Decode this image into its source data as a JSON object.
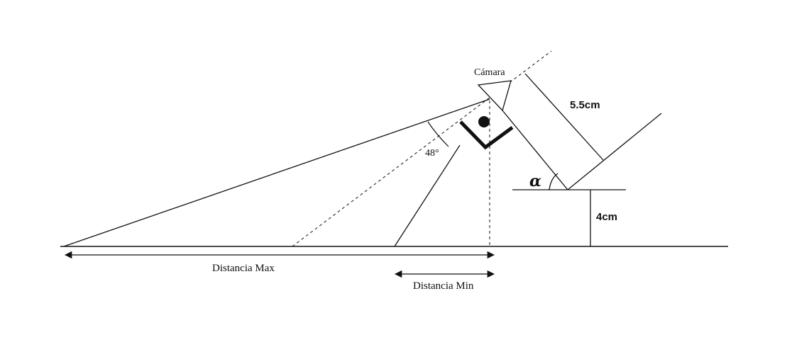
{
  "labels": {
    "camera": "Cámara",
    "angle": "48°",
    "alpha": "α",
    "length_arm": "5.5cm",
    "height": "4cm",
    "distance_max": "Distancia Max",
    "distance_min": "Distancia Min"
  }
}
